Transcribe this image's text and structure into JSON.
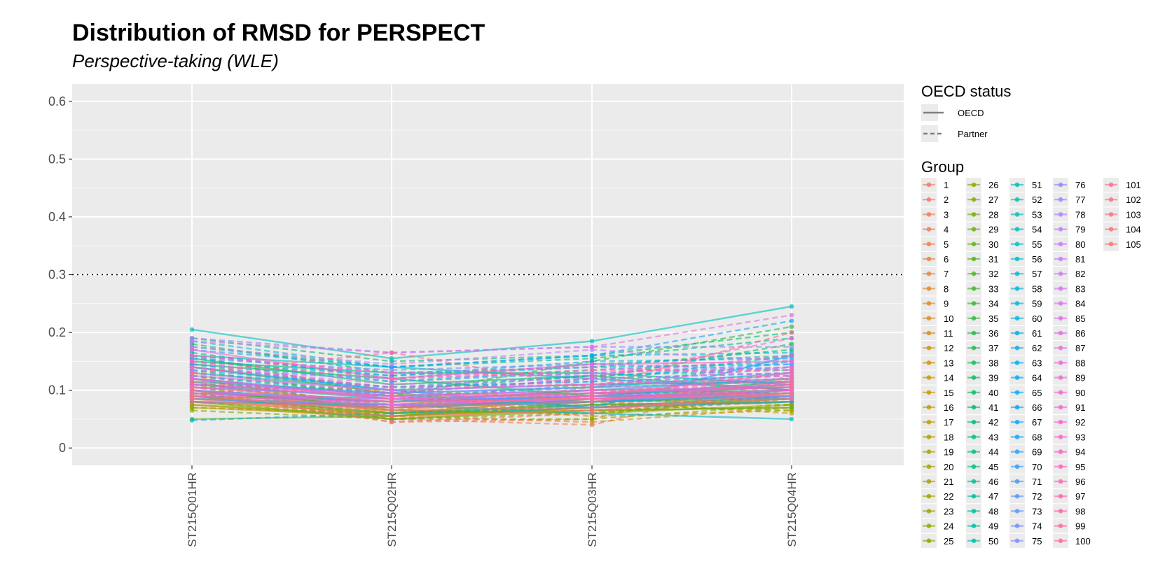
{
  "chart_data": {
    "type": "line",
    "title": "Distribution of RMSD for PERSPECT",
    "subtitle": "Perspective-taking (WLE)",
    "xlabel": "",
    "ylabel": "",
    "categories": [
      "ST215Q01HR",
      "ST215Q02HR",
      "ST215Q03HR",
      "ST215Q04HR"
    ],
    "ylim": [
      -0.03,
      0.63
    ],
    "yticks": [
      "0",
      "0.1",
      "0.2",
      "0.3",
      "0.4",
      "0.5",
      "0.6"
    ],
    "ytick_values": [
      0,
      0.1,
      0.2,
      0.3,
      0.4,
      0.5,
      0.6
    ],
    "reference_line": {
      "y": 0.3,
      "style": "dotted"
    },
    "grid": true,
    "legend_position": "right",
    "legend_linetype": {
      "title": "OECD status",
      "items": [
        {
          "label": "OECD",
          "style": "solid"
        },
        {
          "label": "Partner",
          "style": "dashed"
        }
      ]
    },
    "legend_color": {
      "title": "Group",
      "labels": [
        "1",
        "2",
        "3",
        "4",
        "5",
        "6",
        "7",
        "8",
        "9",
        "10",
        "11",
        "12",
        "13",
        "14",
        "15",
        "16",
        "17",
        "18",
        "19",
        "20",
        "21",
        "22",
        "23",
        "24",
        "25",
        "26",
        "27",
        "28",
        "29",
        "30",
        "31",
        "32",
        "33",
        "34",
        "35",
        "36",
        "37",
        "38",
        "39",
        "40",
        "41",
        "42",
        "43",
        "44",
        "45",
        "46",
        "47",
        "48",
        "49",
        "50",
        "51",
        "52",
        "53",
        "54",
        "55",
        "56",
        "57",
        "58",
        "59",
        "60",
        "61",
        "62",
        "63",
        "64",
        "65",
        "66",
        "67",
        "68",
        "69",
        "70",
        "71",
        "72",
        "73",
        "74",
        "75",
        "76",
        "77",
        "78",
        "79",
        "80",
        "81",
        "82",
        "83",
        "84",
        "85",
        "86",
        "87",
        "88",
        "89",
        "90",
        "91",
        "92",
        "93",
        "94",
        "95",
        "96",
        "97",
        "98",
        "99",
        "100",
        "101",
        "102",
        "103",
        "104",
        "105"
      ]
    },
    "series": [
      {
        "group": "1",
        "status": "OECD",
        "values": [
          0.09,
          0.06,
          0.085,
          0.1
        ]
      },
      {
        "group": "2",
        "status": "Partner",
        "values": [
          0.11,
          0.05,
          0.04,
          0.12
        ]
      },
      {
        "group": "3",
        "status": "OECD",
        "values": [
          0.1,
          0.07,
          0.08,
          0.11
        ]
      },
      {
        "group": "4",
        "status": "Partner",
        "values": [
          0.08,
          0.055,
          0.075,
          0.095
        ]
      },
      {
        "group": "5",
        "status": "OECD",
        "values": [
          0.12,
          0.065,
          0.09,
          0.09
        ]
      },
      {
        "group": "6",
        "status": "Partner",
        "values": [
          0.095,
          0.045,
          0.05,
          0.125
        ]
      },
      {
        "group": "7",
        "status": "OECD",
        "values": [
          0.085,
          0.075,
          0.095,
          0.105
        ]
      },
      {
        "group": "8",
        "status": "Partner",
        "values": [
          0.13,
          0.06,
          0.065,
          0.08
        ]
      },
      {
        "group": "9",
        "status": "OECD",
        "values": [
          0.075,
          0.05,
          0.07,
          0.085
        ]
      },
      {
        "group": "10",
        "status": "Partner",
        "values": [
          0.105,
          0.08,
          0.1,
          0.095
        ]
      },
      {
        "group": "11",
        "status": "OECD",
        "values": [
          0.115,
          0.06,
          0.085,
          0.1
        ]
      },
      {
        "group": "12",
        "status": "Partner",
        "values": [
          0.095,
          0.055,
          0.045,
          0.07
        ]
      },
      {
        "group": "13",
        "status": "OECD",
        "values": [
          0.08,
          0.07,
          0.08,
          0.09
        ]
      },
      {
        "group": "14",
        "status": "Partner",
        "values": [
          0.125,
          0.065,
          0.105,
          0.115
        ]
      },
      {
        "group": "15",
        "status": "OECD",
        "values": [
          0.07,
          0.055,
          0.075,
          0.08
        ]
      },
      {
        "group": "16",
        "status": "Partner",
        "values": [
          0.1,
          0.06,
          0.08,
          0.06
        ]
      },
      {
        "group": "17",
        "status": "OECD",
        "values": [
          0.09,
          0.07,
          0.09,
          0.085
        ]
      },
      {
        "group": "18",
        "status": "Partner",
        "values": [
          0.085,
          0.075,
          0.055,
          0.065
        ]
      },
      {
        "group": "19",
        "status": "OECD",
        "values": [
          0.14,
          0.095,
          0.07,
          0.09
        ]
      },
      {
        "group": "20",
        "status": "Partner",
        "values": [
          0.11,
          0.1,
          0.085,
          0.075
        ]
      },
      {
        "group": "21",
        "status": "OECD",
        "values": [
          0.08,
          0.06,
          0.065,
          0.07
        ]
      },
      {
        "group": "22",
        "status": "Partner",
        "values": [
          0.095,
          0.05,
          0.06,
          0.085
        ]
      },
      {
        "group": "23",
        "status": "OECD",
        "values": [
          0.075,
          0.055,
          0.07,
          0.08
        ]
      },
      {
        "group": "24",
        "status": "Partner",
        "values": [
          0.07,
          0.06,
          0.075,
          0.065
        ]
      },
      {
        "group": "25",
        "status": "OECD",
        "values": [
          0.1,
          0.065,
          0.06,
          0.075
        ]
      },
      {
        "group": "26",
        "status": "Partner",
        "values": [
          0.065,
          0.05,
          0.05,
          0.075
        ]
      },
      {
        "group": "27",
        "status": "OECD",
        "values": [
          0.09,
          0.055,
          0.07,
          0.085
        ]
      },
      {
        "group": "28",
        "status": "Partner",
        "values": [
          0.105,
          0.065,
          0.06,
          0.09
        ]
      },
      {
        "group": "29",
        "status": "OECD",
        "values": [
          0.08,
          0.05,
          0.065,
          0.07
        ]
      },
      {
        "group": "30",
        "status": "Partner",
        "values": [
          0.12,
          0.07,
          0.095,
          0.095
        ]
      },
      {
        "group": "31",
        "status": "OECD",
        "values": [
          0.05,
          0.055,
          0.08,
          0.085
        ]
      },
      {
        "group": "32",
        "status": "Partner",
        "values": [
          0.11,
          0.075,
          0.09,
          0.1
        ]
      },
      {
        "group": "33",
        "status": "OECD",
        "values": [
          0.09,
          0.06,
          0.075,
          0.08
        ]
      },
      {
        "group": "34",
        "status": "Partner",
        "values": [
          0.135,
          0.085,
          0.11,
          0.12
        ]
      },
      {
        "group": "35",
        "status": "OECD",
        "values": [
          0.1,
          0.07,
          0.085,
          0.09
        ]
      },
      {
        "group": "36",
        "status": "Partner",
        "values": [
          0.16,
          0.09,
          0.15,
          0.21
        ]
      },
      {
        "group": "37",
        "status": "OECD",
        "values": [
          0.095,
          0.08,
          0.1,
          0.105
        ]
      },
      {
        "group": "38",
        "status": "Partner",
        "values": [
          0.125,
          0.095,
          0.12,
          0.18
        ]
      },
      {
        "group": "39",
        "status": "OECD",
        "values": [
          0.155,
          0.11,
          0.125,
          0.1
        ]
      },
      {
        "group": "40",
        "status": "Partner",
        "values": [
          0.18,
          0.13,
          0.14,
          0.17
        ]
      },
      {
        "group": "41",
        "status": "OECD",
        "values": [
          0.145,
          0.12,
          0.09,
          0.115
        ]
      },
      {
        "group": "42",
        "status": "Partner",
        "values": [
          0.19,
          0.15,
          0.16,
          0.2
        ]
      },
      {
        "group": "43",
        "status": "OECD",
        "values": [
          0.15,
          0.13,
          0.13,
          0.11
        ]
      },
      {
        "group": "44",
        "status": "Partner",
        "values": [
          0.175,
          0.14,
          0.155,
          0.19
        ]
      },
      {
        "group": "45",
        "status": "OECD",
        "values": [
          0.11,
          0.085,
          0.095,
          0.1
        ]
      },
      {
        "group": "46",
        "status": "Partner",
        "values": [
          0.165,
          0.12,
          0.145,
          0.16
        ]
      },
      {
        "group": "47",
        "status": "OECD",
        "values": [
          0.13,
          0.1,
          0.11,
          0.115
        ]
      },
      {
        "group": "48",
        "status": "Partner",
        "values": [
          0.145,
          0.1,
          0.125,
          0.135
        ]
      },
      {
        "group": "49",
        "status": "OECD",
        "values": [
          0.085,
          0.07,
          0.08,
          0.095
        ]
      },
      {
        "group": "50",
        "status": "Partner",
        "values": [
          0.155,
          0.115,
          0.135,
          0.15
        ]
      },
      {
        "group": "51",
        "status": "OECD",
        "values": [
          0.16,
          0.14,
          0.12,
          0.1
        ]
      },
      {
        "group": "52",
        "status": "Partner",
        "values": [
          0.14,
          0.105,
          0.115,
          0.16
        ]
      },
      {
        "group": "53",
        "status": "OECD",
        "values": [
          0.205,
          0.155,
          0.185,
          0.245
        ]
      },
      {
        "group": "54",
        "status": "Partner",
        "values": [
          0.125,
          0.09,
          0.105,
          0.15
        ]
      },
      {
        "group": "55",
        "status": "OECD",
        "values": [
          0.085,
          0.075,
          0.06,
          0.05
        ]
      },
      {
        "group": "56",
        "status": "Partner",
        "values": [
          0.185,
          0.14,
          0.16,
          0.165
        ]
      },
      {
        "group": "57",
        "status": "OECD",
        "values": [
          0.115,
          0.095,
          0.105,
          0.13
        ]
      },
      {
        "group": "58",
        "status": "Partner",
        "values": [
          0.15,
          0.125,
          0.14,
          0.145
        ]
      },
      {
        "group": "59",
        "status": "OECD",
        "values": [
          0.1,
          0.08,
          0.09,
          0.11
        ]
      },
      {
        "group": "60",
        "status": "Partner",
        "values": [
          0.048,
          0.06,
          0.07,
          0.09
        ]
      },
      {
        "group": "61",
        "status": "OECD",
        "values": [
          0.12,
          0.09,
          0.1,
          0.12
        ]
      },
      {
        "group": "62",
        "status": "Partner",
        "values": [
          0.135,
          0.105,
          0.125,
          0.14
        ]
      },
      {
        "group": "63",
        "status": "OECD",
        "values": [
          0.08,
          0.075,
          0.08,
          0.09
        ]
      },
      {
        "group": "64",
        "status": "Partner",
        "values": [
          0.16,
          0.125,
          0.15,
          0.155
        ]
      },
      {
        "group": "65",
        "status": "OECD",
        "values": [
          0.14,
          0.1,
          0.07,
          0.16
        ]
      },
      {
        "group": "66",
        "status": "Partner",
        "values": [
          0.11,
          0.095,
          0.12,
          0.13
        ]
      },
      {
        "group": "67",
        "status": "OECD",
        "values": [
          0.09,
          0.08,
          0.09,
          0.095
        ]
      },
      {
        "group": "68",
        "status": "Partner",
        "values": [
          0.17,
          0.14,
          0.16,
          0.22
        ]
      },
      {
        "group": "69",
        "status": "OECD",
        "values": [
          0.095,
          0.085,
          0.07,
          0.08
        ]
      },
      {
        "group": "70",
        "status": "Partner",
        "values": [
          0.13,
          0.105,
          0.115,
          0.125
        ]
      },
      {
        "group": "71",
        "status": "OECD",
        "values": [
          0.105,
          0.09,
          0.08,
          0.1
        ]
      },
      {
        "group": "72",
        "status": "Partner",
        "values": [
          0.145,
          0.115,
          0.13,
          0.145
        ]
      },
      {
        "group": "73",
        "status": "OECD",
        "values": [
          0.12,
          0.085,
          0.095,
          0.105
        ]
      },
      {
        "group": "74",
        "status": "Partner",
        "values": [
          0.155,
          0.135,
          0.145,
          0.135
        ]
      },
      {
        "group": "75",
        "status": "OECD",
        "values": [
          0.1,
          0.08,
          0.09,
          0.085
        ]
      },
      {
        "group": "76",
        "status": "Partner",
        "values": [
          0.19,
          0.165,
          0.175,
          0.175
        ]
      },
      {
        "group": "77",
        "status": "OECD",
        "values": [
          0.11,
          0.095,
          0.105,
          0.115
        ]
      },
      {
        "group": "78",
        "status": "Partner",
        "values": [
          0.135,
          0.12,
          0.13,
          0.14
        ]
      },
      {
        "group": "79",
        "status": "OECD",
        "values": [
          0.085,
          0.075,
          0.085,
          0.09
        ]
      },
      {
        "group": "80",
        "status": "Partner",
        "values": [
          0.175,
          0.145,
          0.17,
          0.15
        ]
      },
      {
        "group": "81",
        "status": "OECD",
        "values": [
          0.125,
          0.1,
          0.11,
          0.12
        ]
      },
      {
        "group": "82",
        "status": "Partner",
        "values": [
          0.16,
          0.13,
          0.14,
          0.125
        ]
      },
      {
        "group": "83",
        "status": "OECD",
        "values": [
          0.105,
          0.09,
          0.1,
          0.105
        ]
      },
      {
        "group": "84",
        "status": "Partner",
        "values": [
          0.14,
          0.11,
          0.12,
          0.13
        ]
      },
      {
        "group": "85",
        "status": "OECD",
        "values": [
          0.095,
          0.085,
          0.09,
          0.1
        ]
      },
      {
        "group": "86",
        "status": "Partner",
        "values": [
          0.185,
          0.165,
          0.175,
          0.23
        ]
      },
      {
        "group": "87",
        "status": "OECD",
        "values": [
          0.12,
          0.085,
          0.095,
          0.11
        ]
      },
      {
        "group": "88",
        "status": "Partner",
        "values": [
          0.15,
          0.1,
          0.11,
          0.14
        ]
      },
      {
        "group": "89",
        "status": "OECD",
        "values": [
          0.1,
          0.075,
          0.085,
          0.095
        ]
      },
      {
        "group": "90",
        "status": "Partner",
        "values": [
          0.13,
          0.095,
          0.12,
          0.19
        ]
      },
      {
        "group": "91",
        "status": "OECD",
        "values": [
          0.17,
          0.12,
          0.145,
          0.15
        ]
      },
      {
        "group": "92",
        "status": "Partner",
        "values": [
          0.12,
          0.09,
          0.1,
          0.11
        ]
      },
      {
        "group": "93",
        "status": "OECD",
        "values": [
          0.09,
          0.08,
          0.085,
          0.1
        ]
      },
      {
        "group": "94",
        "status": "Partner",
        "values": [
          0.16,
          0.13,
          0.125,
          0.16
        ]
      },
      {
        "group": "95",
        "status": "OECD",
        "values": [
          0.11,
          0.09,
          0.095,
          0.105
        ]
      },
      {
        "group": "96",
        "status": "Partner",
        "values": [
          0.14,
          0.105,
          0.11,
          0.125
        ]
      },
      {
        "group": "97",
        "status": "OECD",
        "values": [
          0.095,
          0.07,
          0.09,
          0.13
        ]
      },
      {
        "group": "98",
        "status": "Partner",
        "values": [
          0.15,
          0.12,
          0.135,
          0.135
        ]
      },
      {
        "group": "99",
        "status": "OECD",
        "values": [
          0.08,
          0.07,
          0.08,
          0.115
        ]
      },
      {
        "group": "100",
        "status": "Partner",
        "values": [
          0.115,
          0.085,
          0.095,
          0.12
        ]
      },
      {
        "group": "101",
        "status": "OECD",
        "values": [
          0.105,
          0.08,
          0.085,
          0.095
        ]
      },
      {
        "group": "102",
        "status": "Partner",
        "values": [
          0.13,
          0.165,
          0.105,
          0.2
        ]
      },
      {
        "group": "103",
        "status": "OECD",
        "values": [
          0.09,
          0.065,
          0.07,
          0.085
        ]
      },
      {
        "group": "104",
        "status": "Partner",
        "values": [
          0.1,
          0.045,
          0.06,
          0.11
        ]
      },
      {
        "group": "105",
        "status": "OECD",
        "values": [
          0.085,
          0.055,
          0.065,
          0.095
        ]
      }
    ]
  }
}
